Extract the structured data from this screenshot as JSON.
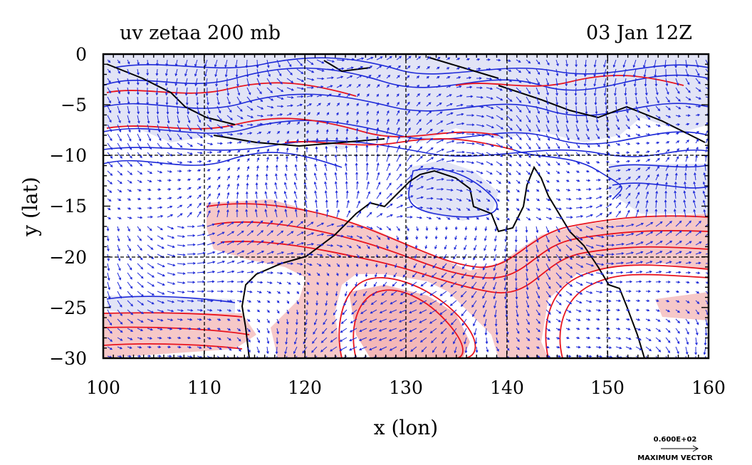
{
  "title_left": "uv zetaa 200 mb",
  "title_right": "03 Jan 12Z",
  "xlabel": "x (lon)",
  "ylabel": "y (lat)",
  "x_ticks": [
    "100",
    "110",
    "120",
    "130",
    "140",
    "150",
    "160"
  ],
  "y_ticks": [
    "0",
    "−5",
    "−10",
    "−15",
    "−20",
    "−25",
    "−30"
  ],
  "x_range": [
    100,
    160
  ],
  "y_range": [
    -30,
    0
  ],
  "legend": {
    "magnitude": "0.600E+02",
    "label": "MAXIMUM VECTOR"
  },
  "colors": {
    "positive_contour": "#e8141e",
    "positive_fill": "#f6c8c8",
    "negative_contour": "#1e2ad8",
    "negative_fill": "#e2e4f6",
    "vector": "#1e2ad8",
    "coast": "#000000"
  }
}
